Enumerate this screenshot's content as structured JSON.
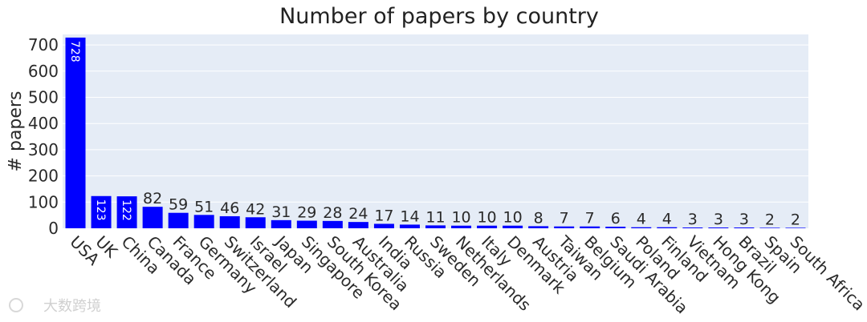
{
  "chart_data": {
    "type": "bar",
    "title": "Number of papers by country",
    "xlabel": "",
    "ylabel": "# papers",
    "ylim": [
      0,
      740
    ],
    "yticks": [
      0,
      100,
      200,
      300,
      400,
      500,
      600,
      700
    ],
    "grid": true,
    "bar_color": "#0000ff",
    "plot_bg": "#e5ecf6",
    "categories": [
      "USA",
      "UK",
      "China",
      "Canada",
      "France",
      "Germany",
      "Switzerland",
      "Israel",
      "Japan",
      "Singapore",
      "South Korea",
      "Australia",
      "India",
      "Russia",
      "Sweden",
      "Netherlands",
      "Italy",
      "Denmark",
      "Austria",
      "Taiwan",
      "Belgium",
      "Saudi Arabia",
      "Poland",
      "Finland",
      "Vietnam",
      "Hong Kong",
      "Brazil",
      "Spain",
      "South Africa"
    ],
    "values": [
      728,
      123,
      122,
      82,
      59,
      51,
      46,
      42,
      31,
      29,
      28,
      24,
      17,
      14,
      11,
      10,
      10,
      10,
      8,
      7,
      7,
      6,
      4,
      4,
      3,
      3,
      3,
      2,
      2
    ]
  },
  "watermark": "大数跨境"
}
